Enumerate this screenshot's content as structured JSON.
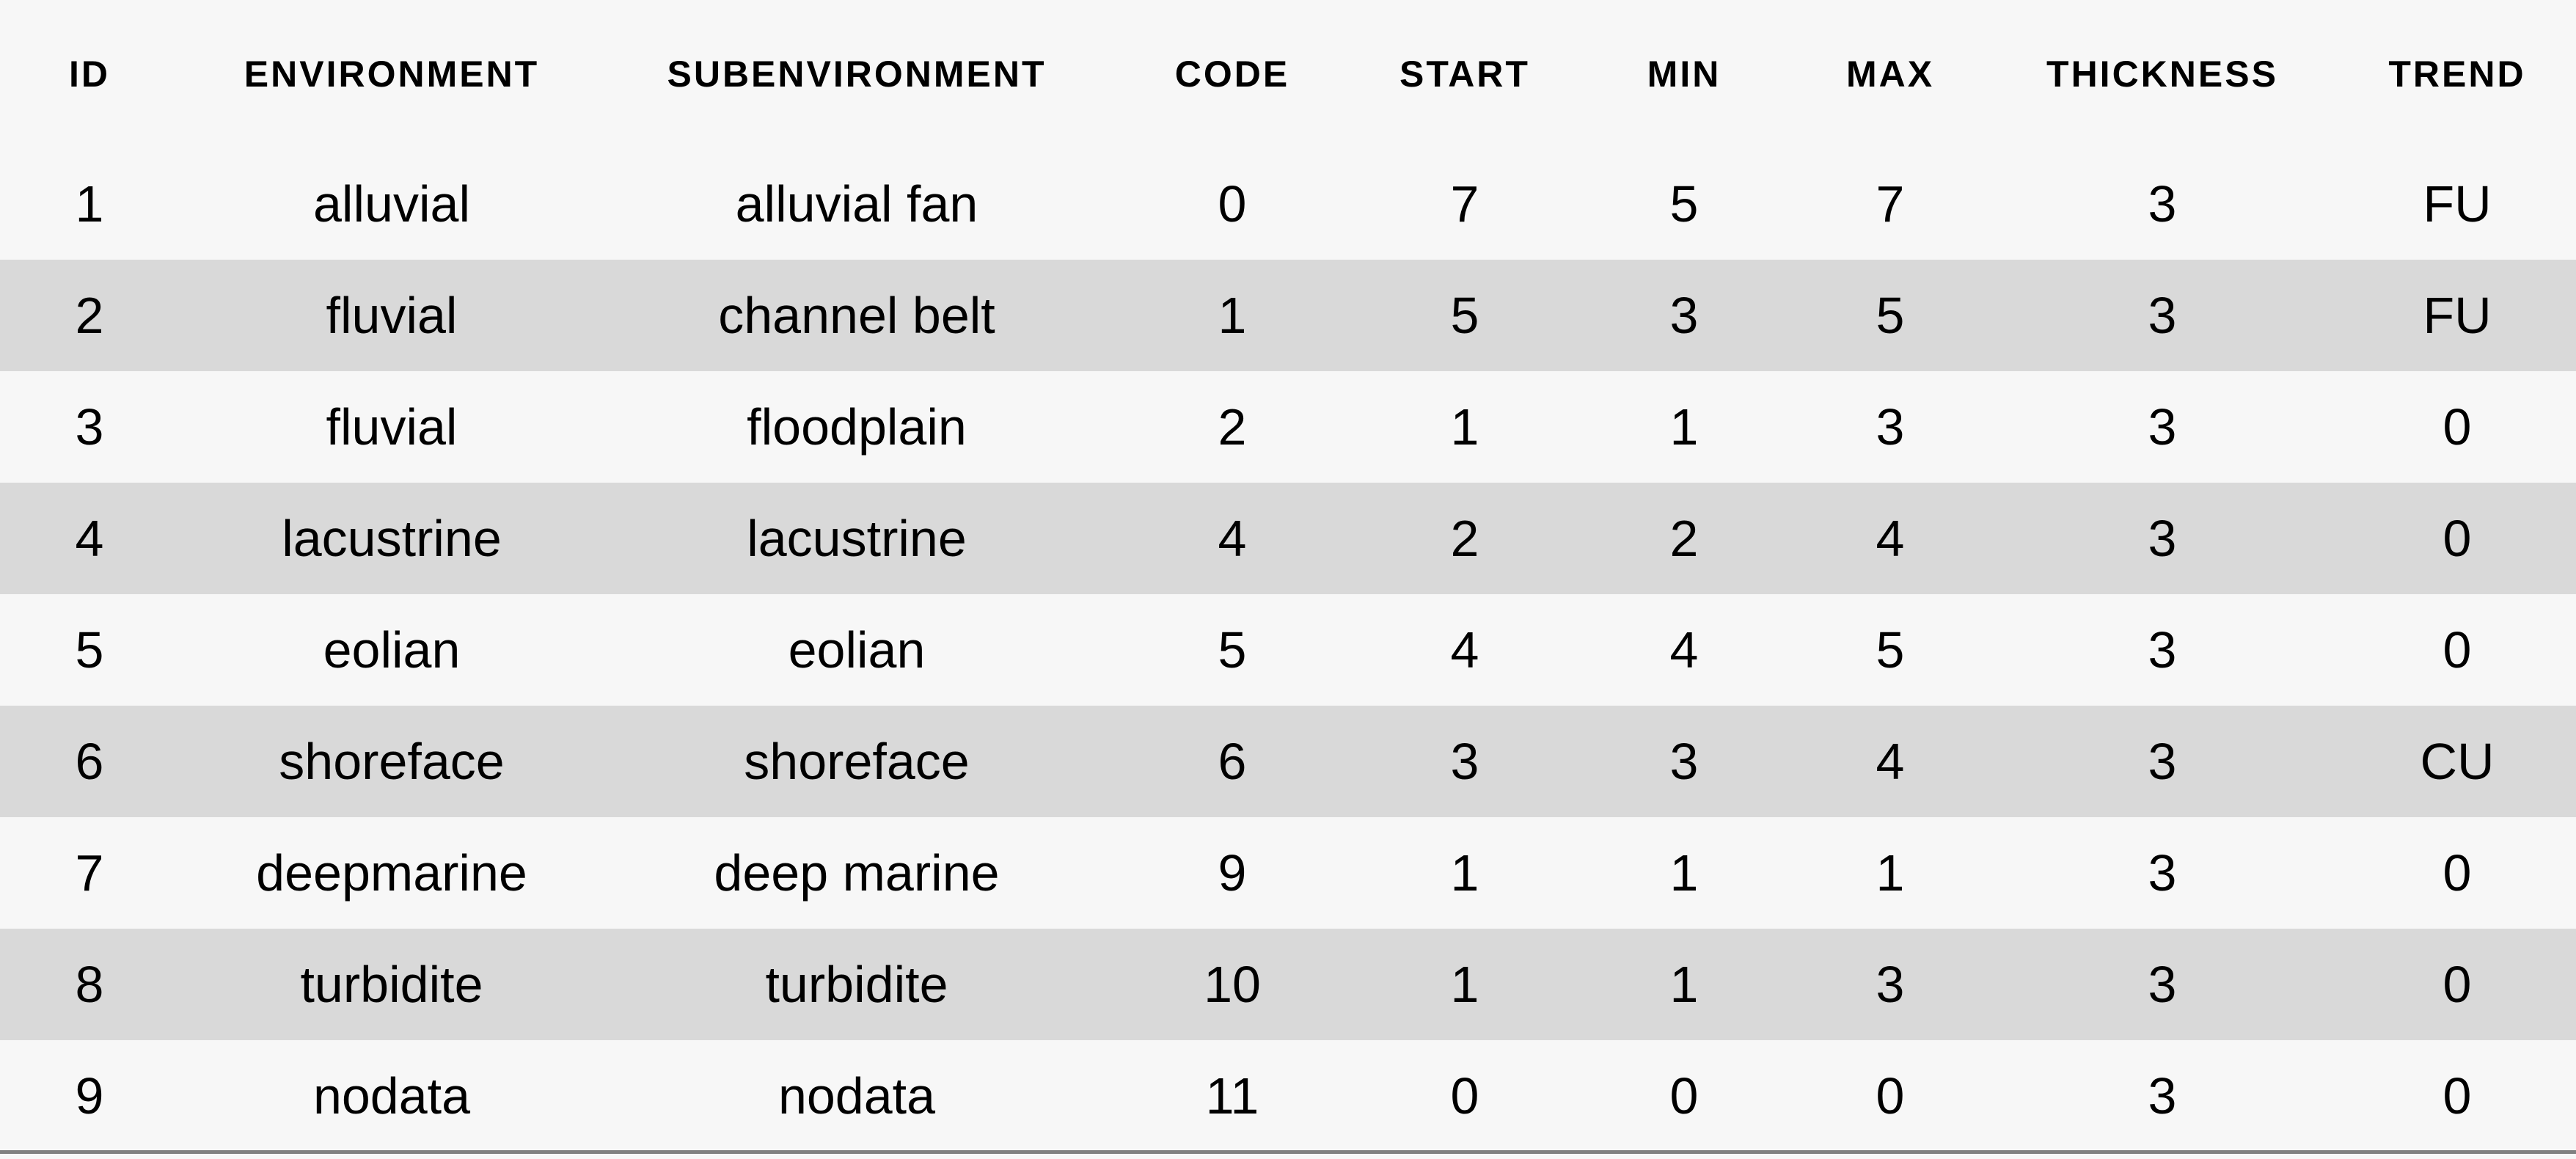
{
  "headers": [
    "ID",
    "ENVIRONMENT",
    "SUBENVIRONMENT",
    "CODE",
    "START",
    "MIN",
    "MAX",
    "THICKNESS",
    "TREND"
  ],
  "rows": [
    [
      "1",
      "alluvial",
      "alluvial fan",
      "0",
      "7",
      "5",
      "7",
      "3",
      "FU"
    ],
    [
      "2",
      "fluvial",
      "channel belt",
      "1",
      "5",
      "3",
      "5",
      "3",
      "FU"
    ],
    [
      "3",
      "fluvial",
      "floodplain",
      "2",
      "1",
      "1",
      "3",
      "3",
      "0"
    ],
    [
      "4",
      "lacustrine",
      "lacustrine",
      "4",
      "2",
      "2",
      "4",
      "3",
      "0"
    ],
    [
      "5",
      "eolian",
      "eolian",
      "5",
      "4",
      "4",
      "5",
      "3",
      "0"
    ],
    [
      "6",
      "shoreface",
      "shoreface",
      "6",
      "3",
      "3",
      "4",
      "3",
      "CU"
    ],
    [
      "7",
      "deepmarine",
      "deep marine",
      "9",
      "1",
      "1",
      "1",
      "3",
      "0"
    ],
    [
      "8",
      "turbidite",
      "turbidite",
      "10",
      "1",
      "1",
      "3",
      "3",
      "0"
    ],
    [
      "9",
      "nodata",
      "nodata",
      "11",
      "0",
      "0",
      "0",
      "3",
      "0"
    ]
  ],
  "colors": {
    "background": "#f7f7f7",
    "alternate_row": "#d9d9d9",
    "bottom_rule": "#808080"
  }
}
